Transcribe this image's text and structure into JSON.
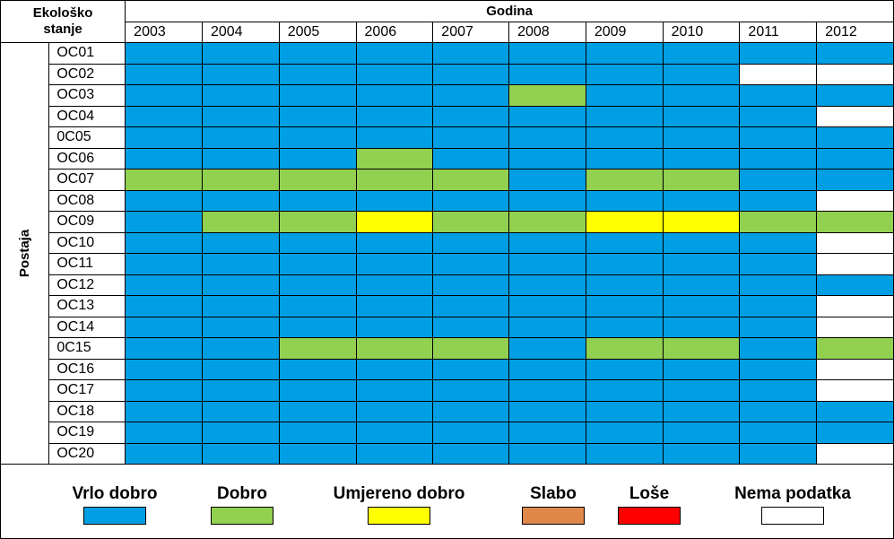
{
  "colors": {
    "vrlo_dobro": "#009fe3",
    "dobro": "#92d050",
    "umjereno_dobro": "#ffff00",
    "slabo": "#e0874a",
    "lose": "#ff0000",
    "nema_podatka": "#ffffff"
  },
  "header": {
    "ekolosko": "Ekološko",
    "stanje": "stanje",
    "godina": "Godina",
    "postaja": "Postaja"
  },
  "chart_data": {
    "type": "table",
    "title": "",
    "years": [
      "2003",
      "2004",
      "2005",
      "2006",
      "2007",
      "2008",
      "2009",
      "2010",
      "2011",
      "2012"
    ],
    "codes": {
      "V": "Vrlo dobro",
      "D": "Dobro",
      "U": "Umjereno dobro",
      "S": "Slabo",
      "L": "Loše",
      "N": "Nema podatka"
    },
    "rows": [
      {
        "station": "OC01",
        "status": [
          "V",
          "V",
          "V",
          "V",
          "V",
          "V",
          "V",
          "V",
          "V",
          "V"
        ]
      },
      {
        "station": "OC02",
        "status": [
          "V",
          "V",
          "V",
          "V",
          "V",
          "V",
          "V",
          "V",
          "N",
          "N"
        ]
      },
      {
        "station": "OC03",
        "status": [
          "V",
          "V",
          "V",
          "V",
          "V",
          "D",
          "V",
          "V",
          "V",
          "V"
        ]
      },
      {
        "station": "OC04",
        "status": [
          "V",
          "V",
          "V",
          "V",
          "V",
          "V",
          "V",
          "V",
          "V",
          "N"
        ]
      },
      {
        "station": "0C05",
        "status": [
          "V",
          "V",
          "V",
          "V",
          "V",
          "V",
          "V",
          "V",
          "V",
          "V"
        ]
      },
      {
        "station": "OC06",
        "status": [
          "V",
          "V",
          "V",
          "D",
          "V",
          "V",
          "V",
          "V",
          "V",
          "V"
        ]
      },
      {
        "station": "OC07",
        "status": [
          "D",
          "D",
          "D",
          "D",
          "D",
          "V",
          "D",
          "D",
          "V",
          "V"
        ]
      },
      {
        "station": "OC08",
        "status": [
          "V",
          "V",
          "V",
          "V",
          "V",
          "V",
          "V",
          "V",
          "V",
          "N"
        ]
      },
      {
        "station": "OC09",
        "status": [
          "V",
          "D",
          "D",
          "U",
          "D",
          "D",
          "U",
          "U",
          "D",
          "D"
        ]
      },
      {
        "station": "OC10",
        "status": [
          "V",
          "V",
          "V",
          "V",
          "V",
          "V",
          "V",
          "V",
          "V",
          "N"
        ]
      },
      {
        "station": "OC11",
        "status": [
          "V",
          "V",
          "V",
          "V",
          "V",
          "V",
          "V",
          "V",
          "V",
          "N"
        ]
      },
      {
        "station": "OC12",
        "status": [
          "V",
          "V",
          "V",
          "V",
          "V",
          "V",
          "V",
          "V",
          "V",
          "V"
        ]
      },
      {
        "station": "OC13",
        "status": [
          "V",
          "V",
          "V",
          "V",
          "V",
          "V",
          "V",
          "V",
          "V",
          "N"
        ]
      },
      {
        "station": "OC14",
        "status": [
          "V",
          "V",
          "V",
          "V",
          "V",
          "V",
          "V",
          "V",
          "V",
          "N"
        ]
      },
      {
        "station": "0C15",
        "status": [
          "V",
          "V",
          "D",
          "D",
          "D",
          "V",
          "D",
          "D",
          "V",
          "D"
        ]
      },
      {
        "station": "OC16",
        "status": [
          "V",
          "V",
          "V",
          "V",
          "V",
          "V",
          "V",
          "V",
          "V",
          "N"
        ]
      },
      {
        "station": "OC17",
        "status": [
          "V",
          "V",
          "V",
          "V",
          "V",
          "V",
          "V",
          "V",
          "V",
          "N"
        ]
      },
      {
        "station": "OC18",
        "status": [
          "V",
          "V",
          "V",
          "V",
          "V",
          "V",
          "V",
          "V",
          "V",
          "V"
        ]
      },
      {
        "station": "OC19",
        "status": [
          "V",
          "V",
          "V",
          "V",
          "V",
          "V",
          "V",
          "V",
          "V",
          "V"
        ]
      },
      {
        "station": "OC20",
        "status": [
          "V",
          "V",
          "V",
          "V",
          "V",
          "V",
          "V",
          "V",
          "V",
          "N"
        ]
      }
    ]
  },
  "legend": [
    {
      "label": "Vrlo dobro",
      "color_key": "vrlo_dobro"
    },
    {
      "label": "Dobro",
      "color_key": "dobro"
    },
    {
      "label": "Umjereno dobro",
      "color_key": "umjereno_dobro"
    },
    {
      "label": "Slabo",
      "color_key": "slabo"
    },
    {
      "label": "Loše",
      "color_key": "lose"
    },
    {
      "label": "Nema podatka",
      "color_key": "nema_podatka"
    }
  ]
}
